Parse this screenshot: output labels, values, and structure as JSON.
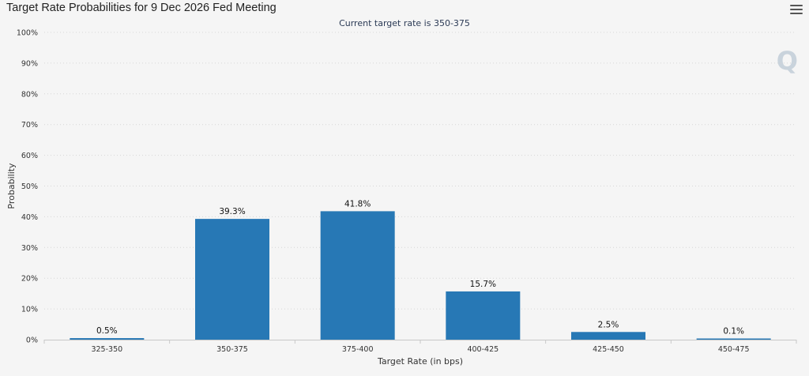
{
  "header": {
    "title": "Target Rate Probabilities for 9 Dec 2026 Fed Meeting",
    "subtitle": "Current target rate is 350-375",
    "menu_icon": "hamburger-menu-icon",
    "logo": "Q"
  },
  "colors": {
    "bar": "#2778b5",
    "grid": "#d6d6d6",
    "axis_text": "#333333",
    "background": "#f5f5f5"
  },
  "chart_data": {
    "type": "bar",
    "title": "Target Rate Probabilities for 9 Dec 2026 Fed Meeting",
    "subtitle": "Current target rate is 350-375",
    "xlabel": "Target Rate (in bps)",
    "ylabel": "Probability",
    "categories": [
      "325-350",
      "350-375",
      "375-400",
      "400-425",
      "425-450",
      "450-475"
    ],
    "values": [
      0.5,
      39.3,
      41.8,
      15.7,
      2.5,
      0.1
    ],
    "data_labels": [
      "0.5%",
      "39.3%",
      "41.8%",
      "15.7%",
      "2.5%",
      "0.1%"
    ],
    "ylim": [
      0,
      100
    ],
    "yticks": [
      "0%",
      "10%",
      "20%",
      "30%",
      "40%",
      "50%",
      "60%",
      "70%",
      "80%",
      "90%",
      "100%"
    ],
    "grid": "horizontal dotted",
    "legend": "none"
  }
}
